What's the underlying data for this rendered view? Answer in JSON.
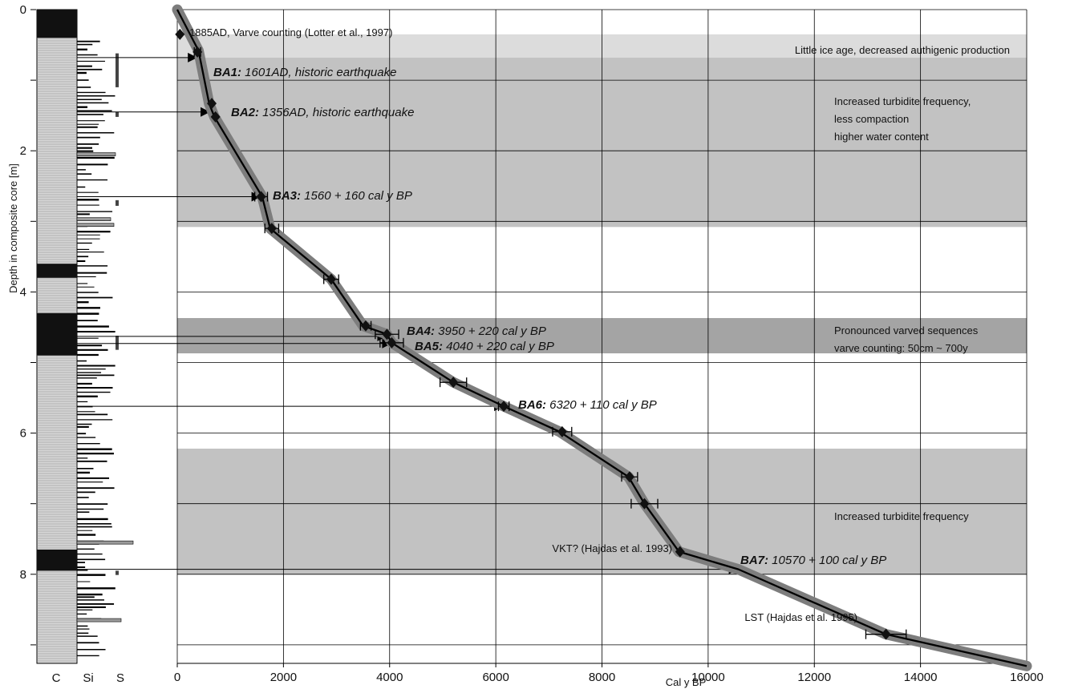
{
  "chart_data": {
    "type": "line",
    "xlabel": "Cal y BP",
    "ylabel": "Depth in composite core [m]",
    "xlim": [
      0,
      16000
    ],
    "ylim": [
      9.3,
      0
    ],
    "y_inverted": true,
    "x_ticks": [
      "0",
      "2000",
      "4000",
      "6000",
      "8000",
      "10000",
      "12000",
      "14000",
      "16000"
    ],
    "y_ticks": [
      "0",
      "2",
      "4",
      "6",
      "8"
    ],
    "grid": true,
    "lithology_column_labels": [
      "C",
      "Si",
      "S"
    ],
    "series": [
      {
        "type": "line",
        "x": [
          0,
          400,
          600,
          700,
          1600,
          1750,
          2900,
          3500,
          3950,
          4040,
          5200,
          6150,
          7200,
          8500,
          8800,
          9450,
          10570,
          13350,
          16000
        ],
        "y": [
          0.0,
          0.58,
          1.33,
          1.52,
          2.65,
          3.1,
          3.82,
          4.48,
          4.6,
          4.72,
          5.28,
          5.62,
          5.98,
          6.62,
          7.0,
          7.68,
          7.93,
          8.85,
          9.3
        ]
      }
    ],
    "dated_points": [
      {
        "x": 50,
        "y": 0.35
      },
      {
        "x": 380,
        "y": 0.6,
        "err": 60
      },
      {
        "x": 650,
        "y": 1.33
      },
      {
        "x": 720,
        "y": 1.52
      },
      {
        "x": 1580,
        "y": 2.65,
        "err": 120
      },
      {
        "x": 1780,
        "y": 3.1,
        "err": 130
      },
      {
        "x": 2900,
        "y": 3.82,
        "err": 140
      },
      {
        "x": 3550,
        "y": 4.48,
        "err": 100
      },
      {
        "x": 3950,
        "y": 4.6,
        "err": 220
      },
      {
        "x": 4040,
        "y": 4.72,
        "err": 220
      },
      {
        "x": 5200,
        "y": 5.28,
        "err": 250
      },
      {
        "x": 6150,
        "y": 5.62,
        "err": 100
      },
      {
        "x": 7250,
        "y": 5.98,
        "err": 180
      },
      {
        "x": 8520,
        "y": 6.62,
        "err": 150
      },
      {
        "x": 8800,
        "y": 7.0,
        "err": 250
      },
      {
        "x": 9470,
        "y": 7.68
      },
      {
        "x": 13350,
        "y": 8.85,
        "err": 380
      }
    ],
    "event_markers": [
      {
        "id": "BA1:",
        "text": "1601AD, historic earthquake",
        "x": 380,
        "y": 0.68
      },
      {
        "id": "BA2:",
        "text": "1356AD, historic earthquake",
        "x": 620,
        "y": 1.45
      },
      {
        "id": "BA3:",
        "text": "1560 + 160 cal y BP",
        "x": 1580,
        "y": 2.65
      },
      {
        "id": "BA4:",
        "text": "3950 + 220 cal y BP",
        "x": 3950,
        "y": 4.63
      },
      {
        "id": "BA5:",
        "text": "4040 + 220 cal y BP",
        "x": 4040,
        "y": 4.73
      },
      {
        "id": "BA6:",
        "text": "6320 + 110 cal y BP",
        "x": 6150,
        "y": 5.62
      },
      {
        "id": "BA7:",
        "text": "10570 + 100 cal y BP",
        "x": 10570,
        "y": 7.93
      }
    ],
    "shaded_bands": [
      {
        "y0": 0.35,
        "y1": 0.68,
        "color": "#dcdcdc",
        "label": "Little ice age, decreased authigenic production"
      },
      {
        "y0": 0.68,
        "y1": 3.08,
        "color": "#c2c2c2",
        "label": "Increased turbidite frequency,\nless compaction\nhigher water content"
      },
      {
        "y0": 4.37,
        "y1": 4.87,
        "color": "#a4a4a4",
        "label": "Pronounced varved sequences\nvarve counting: 50cm ~ 700y"
      },
      {
        "y0": 6.22,
        "y1": 8.0,
        "color": "#c2c2c2",
        "label": "Increased turbidite frequency"
      }
    ],
    "annotations": [
      {
        "text": "1885AD, Varve counting (Lotter et al., 1997)"
      },
      {
        "text": "VKT? (Hajdas et al. 1993)"
      },
      {
        "text": "LST (Hajdas et al. 1995)"
      }
    ]
  }
}
